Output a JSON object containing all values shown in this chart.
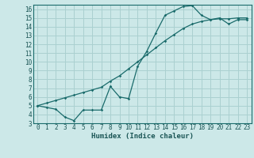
{
  "title": "",
  "xlabel": "Humidex (Indice chaleur)",
  "bg_color": "#cce8e8",
  "grid_color": "#aad0d0",
  "line_color": "#1a6b6b",
  "xmin": -0.5,
  "xmax": 23.5,
  "ymin": 3,
  "ymax": 16.5,
  "x_ticks": [
    0,
    1,
    2,
    3,
    4,
    5,
    6,
    7,
    8,
    9,
    10,
    11,
    12,
    13,
    14,
    15,
    16,
    17,
    18,
    19,
    20,
    21,
    22,
    23
  ],
  "y_ticks": [
    3,
    4,
    5,
    6,
    7,
    8,
    9,
    10,
    11,
    12,
    13,
    14,
    15,
    16
  ],
  "line1_x": [
    0,
    1,
    2,
    3,
    4,
    5,
    6,
    7,
    8,
    9,
    10,
    11,
    12,
    13,
    14,
    15,
    16,
    17,
    18,
    19,
    20,
    21,
    22,
    23
  ],
  "line1_y": [
    5.0,
    4.8,
    4.6,
    3.7,
    3.3,
    4.5,
    4.5,
    4.5,
    7.2,
    6.0,
    5.8,
    9.5,
    11.2,
    13.3,
    15.3,
    15.8,
    16.3,
    16.4,
    15.3,
    14.8,
    15.0,
    14.3,
    14.8,
    14.8
  ],
  "line2_x": [
    0,
    1,
    2,
    3,
    4,
    5,
    6,
    7,
    8,
    9,
    10,
    11,
    12,
    13,
    14,
    15,
    16,
    17,
    18,
    19,
    20,
    21,
    22,
    23
  ],
  "line2_y": [
    5.0,
    5.3,
    5.6,
    5.9,
    6.2,
    6.5,
    6.8,
    7.1,
    7.8,
    8.4,
    9.2,
    10.0,
    10.8,
    11.6,
    12.4,
    13.1,
    13.8,
    14.3,
    14.6,
    14.8,
    14.9,
    14.9,
    15.0,
    15.0
  ],
  "tick_fontsize": 5.5,
  "label_fontsize": 6.5
}
